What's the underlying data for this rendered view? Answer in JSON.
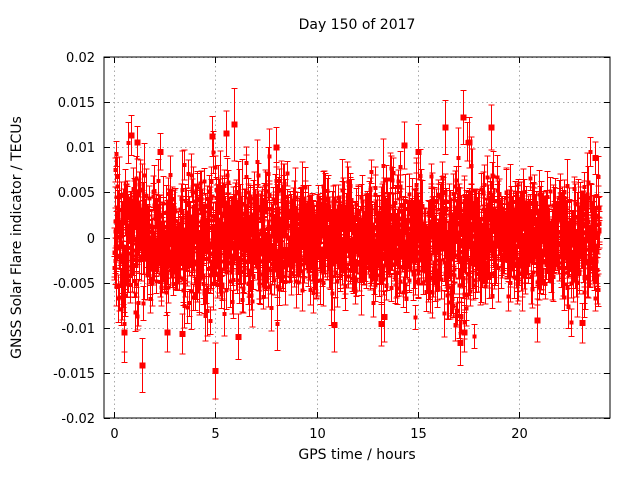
{
  "chart_data": {
    "type": "scatter",
    "subtype": "points-with-vertical-errorbars",
    "title": "Day 150 of 2017",
    "xlabel": "GPS time / hours",
    "ylabel": "GNSS Solar Flare indicator / TECUs",
    "xlim": [
      -0.5,
      24.5
    ],
    "ylim": [
      -0.02,
      0.02
    ],
    "x_ticks": [
      0,
      5,
      10,
      15,
      20
    ],
    "y_ticks": [
      0.02,
      0.015,
      0.01,
      0.005,
      0,
      -0.005,
      -0.01,
      -0.015,
      -0.02
    ],
    "grid": true,
    "legend": "none",
    "seed": 150,
    "style": {
      "background": "#ffffff",
      "axis_color": "#000000",
      "grid_color": "#a8a8a8",
      "grid_dash": "1.5,3",
      "tick_length": 6
    },
    "series": [
      {
        "name": "GNSS solar flare indicator",
        "marker": "filled-square",
        "color": "#ff0000",
        "x_start": 0,
        "x_end": 23.97,
        "n_points": 2200,
        "mean_tecu": 0,
        "hourly_sigma_tecu": [
          0.0036,
          0.0035,
          0.0031,
          0.003,
          0.0033,
          0.0038,
          0.0035,
          0.0031,
          0.003,
          0.0028,
          0.0025,
          0.0024,
          0.0026,
          0.0028,
          0.0033,
          0.0032,
          0.0031,
          0.0038,
          0.0033,
          0.0028,
          0.0026,
          0.0025,
          0.0027,
          0.003,
          0.0035
        ],
        "errorbar_halflength_tecu": {
          "min": 0.0013,
          "typical": 0.0022,
          "max": 0.0055
        },
        "bulk_clip_tecu": 0.0132,
        "notable_points": [
          {
            "x": 0.5,
            "y": -0.0105,
            "err": 0.0022
          },
          {
            "x": 0.85,
            "y": 0.0113,
            "err": 0.0022
          },
          {
            "x": 1.15,
            "y": 0.0105,
            "err": 0.0018
          },
          {
            "x": 1.4,
            "y": -0.0142,
            "err": 0.003
          },
          {
            "x": 2.25,
            "y": 0.0095,
            "err": 0.002
          },
          {
            "x": 2.6,
            "y": -0.0105,
            "err": 0.0022
          },
          {
            "x": 3.35,
            "y": -0.0107,
            "err": 0.0022
          },
          {
            "x": 4.85,
            "y": 0.0112,
            "err": 0.0022
          },
          {
            "x": 5.0,
            "y": -0.0148,
            "err": 0.0031
          },
          {
            "x": 5.55,
            "y": 0.0115,
            "err": 0.0025
          },
          {
            "x": 5.9,
            "y": 0.0125,
            "err": 0.004
          },
          {
            "x": 6.1,
            "y": -0.011,
            "err": 0.0025
          },
          {
            "x": 8.0,
            "y": 0.01,
            "err": 0.0022
          },
          {
            "x": 10.85,
            "y": -0.0097,
            "err": 0.003
          },
          {
            "x": 13.2,
            "y": -0.0096,
            "err": 0.0024
          },
          {
            "x": 13.35,
            "y": -0.0088,
            "err": 0.0028
          },
          {
            "x": 14.3,
            "y": 0.0102,
            "err": 0.0026
          },
          {
            "x": 15.0,
            "y": 0.0095,
            "err": 0.003
          },
          {
            "x": 16.35,
            "y": 0.0122,
            "err": 0.003
          },
          {
            "x": 17.1,
            "y": -0.0117,
            "err": 0.0025
          },
          {
            "x": 17.25,
            "y": 0.0133,
            "err": 0.003
          },
          {
            "x": 17.3,
            "y": -0.0105,
            "err": 0.0022
          },
          {
            "x": 17.55,
            "y": 0.0105,
            "err": 0.0028
          },
          {
            "x": 18.6,
            "y": 0.0122,
            "err": 0.0025
          },
          {
            "x": 20.9,
            "y": -0.0092,
            "err": 0.0024
          },
          {
            "x": 23.1,
            "y": -0.0095,
            "err": 0.0022
          },
          {
            "x": 23.75,
            "y": 0.0088,
            "err": 0.0018
          }
        ]
      }
    ]
  }
}
